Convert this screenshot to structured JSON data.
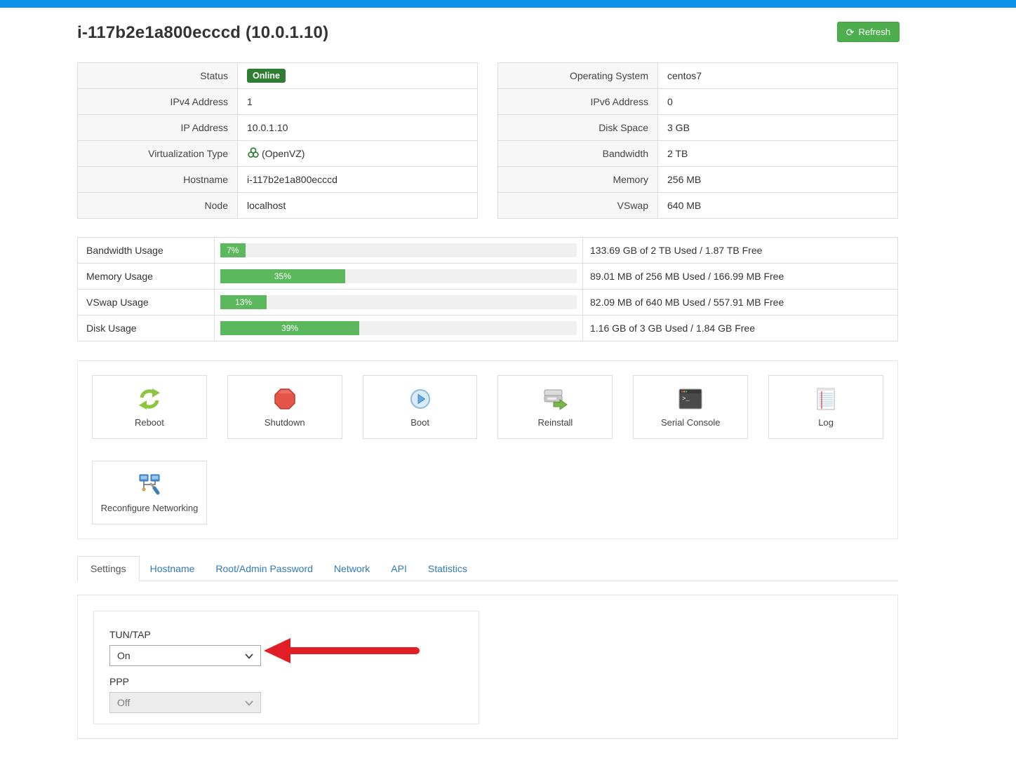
{
  "page": {
    "title": "i-117b2e1a800ecccd (10.0.1.10)",
    "refresh_label": "Refresh",
    "refresh_icon_glyph": "⟳"
  },
  "colors": {
    "topbar_blue": "#0e90e9",
    "refresh_green": "#4cae4c",
    "progress_green": "#5cb85c",
    "online_badge_green": "#2e7d32",
    "tab_link_blue": "#337ab7",
    "annotation_arrow_red": "#e11d26"
  },
  "info_left": {
    "rows": [
      {
        "label": "Status",
        "value": "Online"
      },
      {
        "label": "IPv4 Address",
        "value": "1"
      },
      {
        "label": "IP Address",
        "value": "10.0.1.10"
      },
      {
        "label": "Virtualization Type",
        "value": "(OpenVZ)",
        "icon": "openvz-icon"
      },
      {
        "label": "Hostname",
        "value": "i-117b2e1a800ecccd"
      },
      {
        "label": "Node",
        "value": "localhost"
      }
    ]
  },
  "info_right": {
    "rows": [
      {
        "label": "Operating System",
        "value": "centos7"
      },
      {
        "label": "IPv6 Address",
        "value": "0"
      },
      {
        "label": "Disk Space",
        "value": "3 GB"
      },
      {
        "label": "Bandwidth",
        "value": "2 TB"
      },
      {
        "label": "Memory",
        "value": "256 MB"
      },
      {
        "label": "VSwap",
        "value": "640 MB"
      }
    ]
  },
  "usage": {
    "rows": [
      {
        "label": "Bandwidth Usage",
        "percent": 7,
        "percent_label": "7%",
        "detail": "133.69 GB of 2 TB Used / 1.87 TB Free"
      },
      {
        "label": "Memory Usage",
        "percent": 35,
        "percent_label": "35%",
        "detail": "89.01 MB of 256 MB Used / 166.99 MB Free"
      },
      {
        "label": "VSwap Usage",
        "percent": 13,
        "percent_label": "13%",
        "detail": "82.09 MB of 640 MB Used / 557.91 MB Free"
      },
      {
        "label": "Disk Usage",
        "percent": 39,
        "percent_label": "39%",
        "detail": "1.16 GB of 3 GB Used / 1.84 GB Free"
      }
    ]
  },
  "actions": {
    "items": [
      {
        "label": "Reboot",
        "icon": "reboot-icon"
      },
      {
        "label": "Shutdown",
        "icon": "shutdown-icon"
      },
      {
        "label": "Boot",
        "icon": "boot-icon"
      },
      {
        "label": "Reinstall",
        "icon": "reinstall-icon"
      },
      {
        "label": "Serial Console",
        "icon": "serial-console-icon"
      },
      {
        "label": "Log",
        "icon": "log-icon"
      },
      {
        "label": "Reconfigure Networking",
        "icon": "reconfigure-networking-icon"
      }
    ]
  },
  "tabs": {
    "items": [
      {
        "label": "Settings",
        "active": true
      },
      {
        "label": "Hostname",
        "active": false
      },
      {
        "label": "Root/Admin Password",
        "active": false
      },
      {
        "label": "Network",
        "active": false
      },
      {
        "label": "API",
        "active": false
      },
      {
        "label": "Statistics",
        "active": false
      }
    ]
  },
  "settings": {
    "tuntap_label": "TUN/TAP",
    "tuntap_value": "On",
    "ppp_label": "PPP",
    "ppp_value": "Off",
    "ppp_disabled": true
  }
}
